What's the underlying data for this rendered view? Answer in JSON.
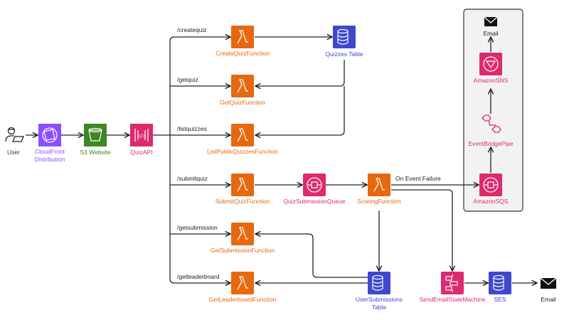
{
  "colors": {
    "lambda": "#E7680E",
    "pink": "#DD2A6E",
    "purple": "#8C4FFF",
    "green": "#3F8624",
    "blue": "#3F48CC",
    "edge": "#222222",
    "group_bg": "#F2F2F2"
  },
  "nodes": {
    "user": {
      "label": "User",
      "icon": "user-laptop-icon"
    },
    "cloudfront": {
      "label1": "CloudFront",
      "label2": "Distribution",
      "icon": "cloudfront-icon"
    },
    "s3": {
      "label": "S3 Website",
      "icon": "s3-bucket-icon"
    },
    "api": {
      "label": "QuizAPI",
      "icon": "api-gateway-icon"
    },
    "create": {
      "label": "CreateQuizFunction",
      "icon": "lambda-icon"
    },
    "get": {
      "label": "GetQuizFunction",
      "icon": "lambda-icon"
    },
    "list": {
      "label": "ListPublicQuizzesFunction",
      "icon": "lambda-icon"
    },
    "submit": {
      "label": "SubmitQuizFunction",
      "icon": "lambda-icon"
    },
    "getsub": {
      "label": "GetSubmissionFunction",
      "icon": "lambda-icon"
    },
    "leader": {
      "label": "GetLeaderboardFunction",
      "icon": "lambda-icon"
    },
    "quizzes": {
      "label": "Quizzes Table",
      "icon": "dynamodb-icon"
    },
    "queue": {
      "label": "QuizSubmissionQueue",
      "icon": "sqs-icon"
    },
    "scoring": {
      "label": "ScoringFunction",
      "icon": "lambda-icon"
    },
    "usersub": {
      "label1": "UserSubmissions",
      "label2": "Table",
      "icon": "dynamodb-icon"
    },
    "sqs": {
      "label": "AmazonSQS",
      "icon": "sqs-icon"
    },
    "pipe": {
      "label": "EventBridgePipe",
      "icon": "eventbridge-pipe-icon"
    },
    "sns": {
      "label": "AmazonSNS",
      "icon": "sns-icon"
    },
    "email_top": {
      "label": "Email",
      "icon": "envelope-icon"
    },
    "sfn": {
      "label": "SendEmailStateMachine",
      "icon": "step-functions-icon"
    },
    "ses": {
      "label": "SES",
      "icon": "ses-icon"
    },
    "email_bottom": {
      "label": "Email",
      "icon": "envelope-icon"
    }
  },
  "routes": {
    "createquiz": "/createquiz",
    "getquiz": "/getquiz",
    "listquizzes": "/listquizzes",
    "submitquiz": "/submitquiz",
    "getsubmission": "/getsubmission",
    "getleaderboard": "/getleaderboard"
  },
  "edge_labels": {
    "failure": "On Event Failure"
  }
}
